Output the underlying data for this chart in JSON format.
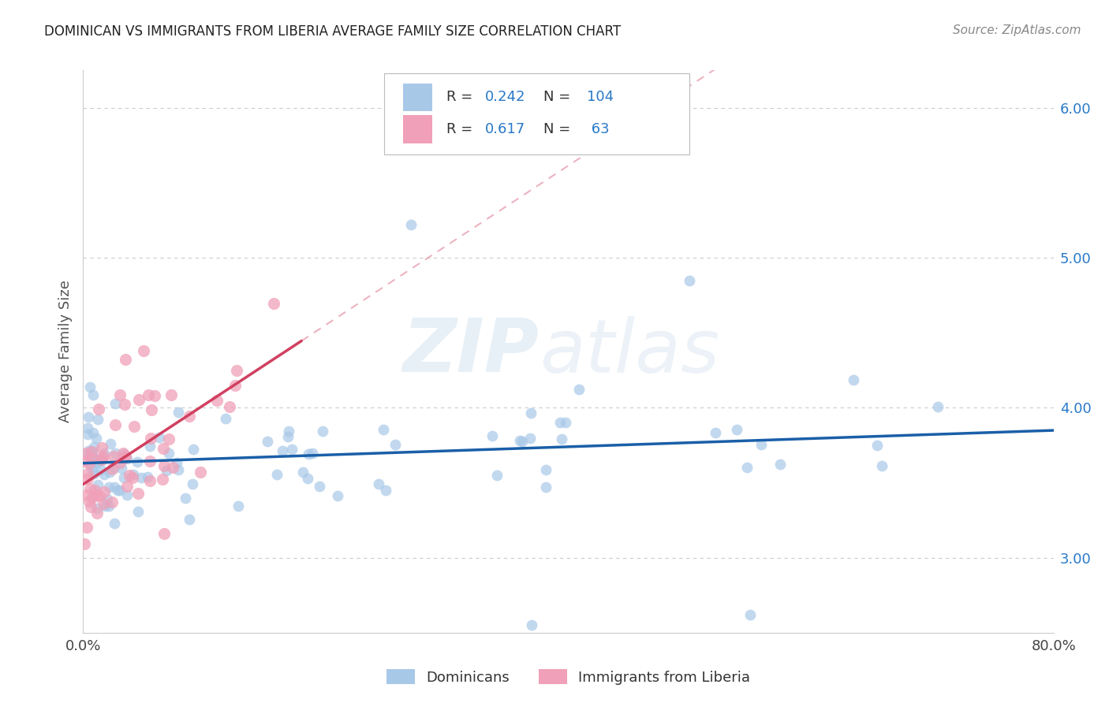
{
  "title": "DOMINICAN VS IMMIGRANTS FROM LIBERIA AVERAGE FAMILY SIZE CORRELATION CHART",
  "source": "Source: ZipAtlas.com",
  "ylabel": "Average Family Size",
  "watermark": "ZIPatlas",
  "blue_scatter_color": "#a8c8e8",
  "pink_scatter_color": "#f0a0b8",
  "blue_line_color": "#1a5fa8",
  "pink_line_color": "#d04060",
  "pink_dash_color": "#e8a0b0",
  "r_value_color": "#2979c8",
  "n_value_color": "#2979c8",
  "xmin": 0.0,
  "xmax": 80.0,
  "ymin": 2.5,
  "ymax": 6.25,
  "yticks": [
    3.0,
    4.0,
    5.0,
    6.0
  ],
  "grid_color": "#cccccc",
  "background": "#ffffff",
  "seed": 42,
  "dom_scatter_size": 100,
  "lib_scatter_size": 120,
  "dom_alpha": 0.7,
  "lib_alpha": 0.75
}
